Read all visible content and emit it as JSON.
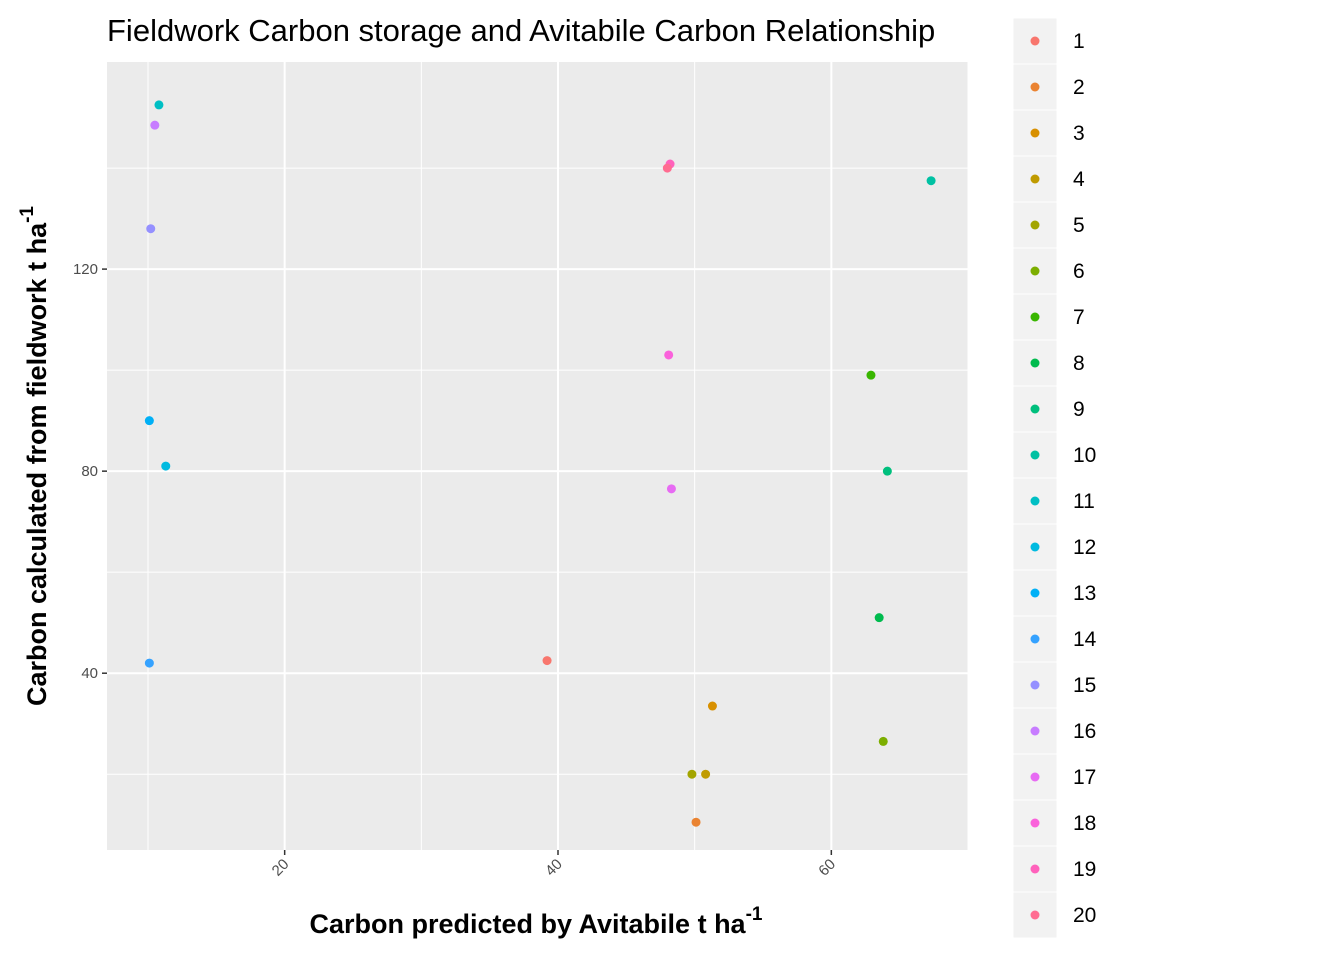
{
  "chart_data": {
    "type": "scatter",
    "title": "Fieldwork Carbon storage and Avitabile Carbon Relationship",
    "xlabel_main": "Carbon predicted by Avitabile t ha",
    "xlabel_sup": "-1",
    "ylabel_main": "Carbon calculated from fieldwork t ha",
    "ylabel_sup": "-1",
    "xlim": [
      7.0,
      70.0
    ],
    "ylim": [
      5.0,
      161.0
    ],
    "x_ticks": [
      20,
      40,
      60
    ],
    "y_ticks": [
      40,
      80,
      120
    ],
    "x_minor": [
      10,
      30,
      50,
      70
    ],
    "y_minor": [
      20,
      60,
      100,
      140
    ],
    "grid": true,
    "legend_position": "right",
    "series": [
      {
        "name": "1",
        "color": "#F8766D",
        "points": [
          [
            39.2,
            42.5
          ]
        ]
      },
      {
        "name": "2",
        "color": "#EA8331",
        "points": [
          [
            50.1,
            10.5
          ]
        ]
      },
      {
        "name": "3",
        "color": "#D89000",
        "points": [
          [
            51.3,
            33.5
          ]
        ]
      },
      {
        "name": "4",
        "color": "#C09B00",
        "points": [
          [
            50.8,
            20.0
          ]
        ]
      },
      {
        "name": "5",
        "color": "#A3A500",
        "points": [
          [
            49.8,
            20.0
          ]
        ]
      },
      {
        "name": "6",
        "color": "#7CAE00",
        "points": [
          [
            63.8,
            26.5
          ]
        ]
      },
      {
        "name": "7",
        "color": "#39B600",
        "points": [
          [
            62.9,
            99.0
          ]
        ]
      },
      {
        "name": "8",
        "color": "#00BB4E",
        "points": [
          [
            63.5,
            51.0
          ]
        ]
      },
      {
        "name": "9",
        "color": "#00BF7D",
        "points": [
          [
            64.1,
            80.0
          ]
        ]
      },
      {
        "name": "10",
        "color": "#00C1A3",
        "points": [
          [
            67.3,
            137.5
          ]
        ]
      },
      {
        "name": "11",
        "color": "#00BFC4",
        "points": [
          [
            10.8,
            152.5
          ]
        ]
      },
      {
        "name": "12",
        "color": "#00BAE0",
        "points": [
          [
            11.3,
            81.0
          ]
        ]
      },
      {
        "name": "13",
        "color": "#00B0F6",
        "points": [
          [
            10.1,
            90.0
          ]
        ]
      },
      {
        "name": "14",
        "color": "#35A2FF",
        "points": [
          [
            10.1,
            42.0
          ]
        ]
      },
      {
        "name": "15",
        "color": "#9590FF",
        "points": [
          [
            10.2,
            128.0
          ]
        ]
      },
      {
        "name": "16",
        "color": "#C77CFF",
        "points": [
          [
            10.5,
            148.5
          ]
        ]
      },
      {
        "name": "17",
        "color": "#E76BF3",
        "points": [
          [
            48.3,
            76.5
          ]
        ]
      },
      {
        "name": "18",
        "color": "#FA62DB",
        "points": [
          [
            48.1,
            103.0
          ]
        ]
      },
      {
        "name": "19",
        "color": "#FF62BC",
        "points": [
          [
            48.2,
            140.8
          ]
        ]
      },
      {
        "name": "20",
        "color": "#FF6C91",
        "points": [
          [
            48.0,
            140.0
          ]
        ]
      }
    ]
  }
}
